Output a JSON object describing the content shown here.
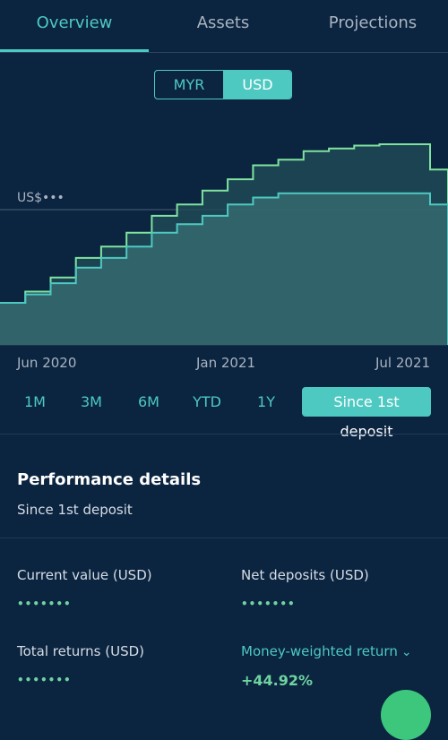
{
  "tabs": [
    {
      "label": "Overview",
      "active": true
    },
    {
      "label": "Assets",
      "active": false
    },
    {
      "label": "Projections",
      "active": false
    }
  ],
  "currency": {
    "options": [
      "MYR",
      "USD"
    ],
    "selected": "USD"
  },
  "chart": {
    "reference_label": "US$•••",
    "x_ticks": [
      "Jun 2020",
      "Jan 2021",
      "Jul 2021"
    ],
    "colors": {
      "portfolio": "#7fe3a0",
      "deposits": "#4ec9c1",
      "fill": "#3a6f73"
    }
  },
  "chart_data": {
    "type": "area",
    "series": [
      {
        "values": [
          30,
          38,
          48,
          62,
          70,
          80,
          92,
          100,
          110,
          118,
          128,
          132,
          138,
          140,
          142,
          143,
          143,
          125,
          5
        ]
      },
      {
        "values": [
          30,
          36,
          44,
          55,
          62,
          70,
          80,
          86,
          92,
          100,
          105,
          108,
          108,
          108,
          108,
          108,
          108,
          100,
          0
        ]
      }
    ],
    "x_ticks": [
      "Jun 2020",
      "Jan 2021",
      "Jul 2021"
    ]
  },
  "time_ranges": {
    "items": [
      "1M",
      "3M",
      "6M",
      "YTD",
      "1Y",
      "Since 1st deposit"
    ],
    "selected": "Since 1st deposit"
  },
  "performance": {
    "title": "Performance details",
    "subtitle": "Since 1st deposit",
    "current_value_label": "Current value (USD)",
    "current_value": "•••••••",
    "net_deposits_label": "Net deposits (USD)",
    "net_deposits": "•••••••",
    "total_returns_label": "Total returns (USD)",
    "total_returns": "•••••••",
    "mwr_label": "Money-weighted return",
    "mwr_value": "+44.92%"
  }
}
